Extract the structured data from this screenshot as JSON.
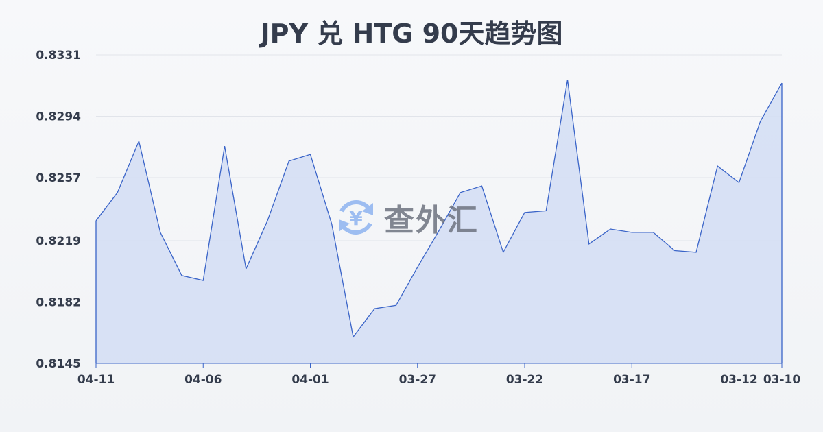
{
  "chart_data": {
    "type": "area",
    "title": "JPY 兑 HTG 90天趋势图",
    "xlabel": "",
    "ylabel": "",
    "ylim": [
      0.8145,
      0.8331
    ],
    "yticks": [
      "0.8331",
      "0.8294",
      "0.8257",
      "0.8219",
      "0.8182",
      "0.8145"
    ],
    "xticks": [
      "04-11",
      "04-06",
      "04-01",
      "03-27",
      "03-22",
      "03-17",
      "03-12",
      "03-10"
    ],
    "grid": true,
    "line_color": "#3a64c8",
    "fill_color": "#d5dff4",
    "x": [
      "04-11",
      "04-10",
      "04-09",
      "04-08",
      "04-07",
      "04-06",
      "04-05",
      "04-04",
      "04-03",
      "04-02",
      "04-01",
      "03-31",
      "03-30",
      "03-29",
      "03-28",
      "03-27",
      "03-26",
      "03-25",
      "03-24",
      "03-23",
      "03-22",
      "03-21",
      "03-20",
      "03-19",
      "03-18",
      "03-17",
      "03-16",
      "03-15",
      "03-14",
      "03-13",
      "03-12",
      "03-11",
      "03-10"
    ],
    "values": [
      0.8231,
      0.8248,
      0.8279,
      0.8224,
      0.8198,
      0.8195,
      0.8276,
      0.8202,
      0.8231,
      0.8267,
      0.8271,
      0.8229,
      0.8161,
      0.8178,
      0.818,
      0.8203,
      0.8225,
      0.8248,
      0.8252,
      0.8212,
      0.8236,
      0.8237,
      0.8316,
      0.8217,
      0.8226,
      0.8224,
      0.8224,
      0.8213,
      0.8212,
      0.8264,
      0.8254,
      0.8291,
      0.8314
    ]
  },
  "watermark": {
    "text": "查外汇",
    "icon": "yen-exchange-icon",
    "icon_color": "#8fb4f0"
  }
}
